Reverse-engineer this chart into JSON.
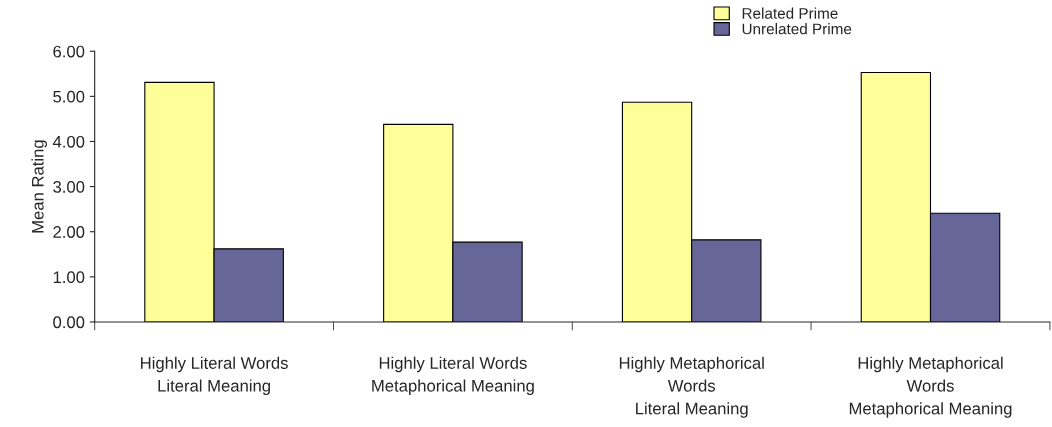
{
  "chart_data": {
    "type": "bar",
    "ylabel": "Mean Rating",
    "categories": [
      "Highly Literal Words\nLiteral Meaning",
      "Highly Literal Words\nMetaphorical Meaning",
      "Highly Metaphorical\nWords\nLiteral Meaning",
      "Highly Metaphorical\nWords\nMetaphorical Meaning"
    ],
    "series": [
      {
        "name": "Related Prime",
        "color": "#ffff99",
        "values": [
          5.31,
          4.38,
          4.87,
          5.53
        ]
      },
      {
        "name": "Unrelated Prime",
        "color": "#666699",
        "values": [
          1.62,
          1.77,
          1.82,
          2.41
        ]
      }
    ],
    "ylim": [
      0,
      6
    ],
    "yticks": [
      {
        "value": 0,
        "label": "0.00"
      },
      {
        "value": 1,
        "label": "1.00"
      },
      {
        "value": 2,
        "label": "2.00"
      },
      {
        "value": 3,
        "label": "3.00"
      },
      {
        "value": 4,
        "label": "4.00"
      },
      {
        "value": 5,
        "label": "5.00"
      },
      {
        "value": 6,
        "label": "6.00"
      }
    ],
    "grid": false,
    "legend": "top right"
  }
}
